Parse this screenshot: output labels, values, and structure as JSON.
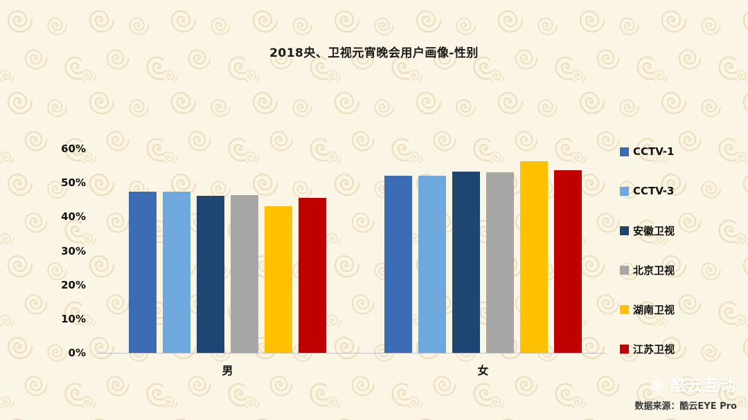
{
  "title": "2018央、卫视元宵晚会用户画像-性别",
  "chart_data": {
    "type": "bar",
    "title": "2018央、卫视元宵晚会用户画像-性别",
    "categories": [
      "男",
      "女"
    ],
    "series": [
      {
        "name": "CCTV-1",
        "color": "#3C6CB4",
        "values": [
          47.4,
          52.1
        ]
      },
      {
        "name": "CCTV-3",
        "color": "#6FA8DC",
        "values": [
          47.4,
          52.1
        ]
      },
      {
        "name": "安徽卫视",
        "color": "#1F4671",
        "values": [
          46.2,
          53.3
        ]
      },
      {
        "name": "北京卫视",
        "color": "#A6A6A6",
        "values": [
          46.4,
          53.0
        ]
      },
      {
        "name": "湖南卫视",
        "color": "#FFC000",
        "values": [
          43.1,
          56.3
        ]
      },
      {
        "name": "江苏卫视",
        "color": "#C00000",
        "values": [
          45.6,
          53.6
        ]
      }
    ],
    "xlabel": "",
    "ylabel": "",
    "ylim": [
      0,
      60
    ],
    "yticks": [
      "0%",
      "10%",
      "20%",
      "30%",
      "40%",
      "50%",
      "60%"
    ],
    "grid": false,
    "legend_position": "right"
  },
  "footer": {
    "brand": "酷云互动",
    "source": "数据来源：酷云EYE Pro"
  },
  "colors": {
    "background": "#FBF5E6",
    "pattern": "#EDDFBE",
    "axis_line": "#C3C3C3"
  }
}
